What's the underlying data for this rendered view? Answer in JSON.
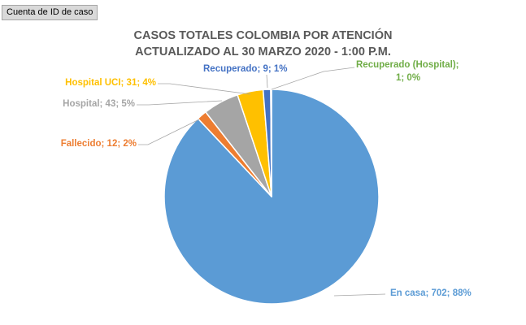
{
  "field_button": "Cuenta de ID de caso",
  "chart_data": {
    "type": "pie",
    "title_lines": [
      "CASOS TOTALES COLOMBIA POR ATENCIÓN",
      "ACTUALIZADO AL 30 MARZO 2020 - 1:00 P.M."
    ],
    "start": "top",
    "direction": "clockwise",
    "slices": [
      {
        "name": "En casa",
        "value": 702,
        "label": "En casa; 702; 88%",
        "color": "#5b9bd5",
        "label_color": "#5b9bd5"
      },
      {
        "name": "Fallecido",
        "value": 12,
        "label": "Fallecido; 12; 2%",
        "color": "#ed7d31",
        "label_color": "#ed7d31"
      },
      {
        "name": "Hospital",
        "value": 43,
        "label": "Hospital; 43; 5%",
        "color": "#a5a5a5",
        "label_color": "#a5a5a5"
      },
      {
        "name": "Hospital UCI",
        "value": 31,
        "label": "Hospital UCI; 31; 4%",
        "color": "#ffc000",
        "label_color": "#ffc000"
      },
      {
        "name": "Recuperado",
        "value": 9,
        "label": "Recuperado; 9; 1%",
        "color": "#4472c4",
        "label_color": "#4472c4"
      },
      {
        "name": "Recuperado (Hospital)",
        "value": 1,
        "label_lines": [
          "Recuperado (Hospital);",
          "1; 0%"
        ],
        "color": "#70ad47",
        "label_color": "#70ad47"
      }
    ]
  }
}
